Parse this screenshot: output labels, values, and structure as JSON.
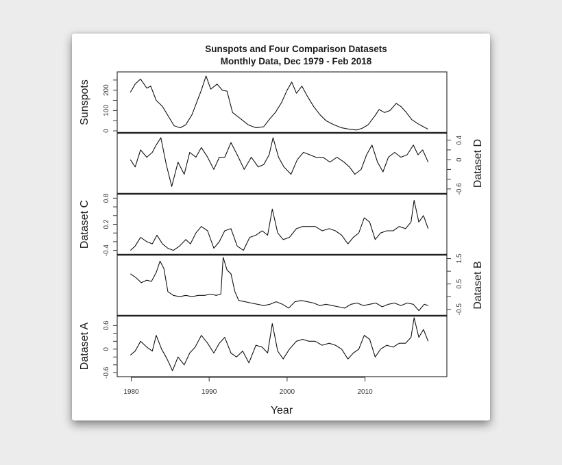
{
  "chart_data": {
    "type": "line",
    "title": "Sunspots and Four Comparison Datasets",
    "subtitle": "Monthly Data, Dec 1979 - Feb 2018",
    "xlabel": "Year",
    "x_ticks": [
      1980,
      1990,
      2000,
      2010
    ],
    "xlim": [
      1978.2,
      2020.5
    ],
    "layout": "stacked panels sharing x-axis; y-axis labels alternate left/right",
    "grid": false,
    "legend": null,
    "panels": [
      {
        "name": "Sunspots",
        "axis_side": "left",
        "yticks": [
          0,
          100,
          200
        ],
        "minor_ticks": [
          0,
          50,
          100,
          150,
          200,
          250
        ],
        "ylim": [
          -10,
          290
        ],
        "x": [
          1979.9,
          1980.5,
          1981.2,
          1982.0,
          1982.5,
          1983.2,
          1984.0,
          1984.8,
          1985.5,
          1986.3,
          1987.0,
          1987.8,
          1988.5,
          1989.0,
          1989.6,
          1990.2,
          1991.0,
          1991.7,
          1992.3,
          1993.0,
          1994.0,
          1995.0,
          1996.0,
          1997.0,
          1997.8,
          1998.5,
          1999.3,
          2000.0,
          2000.6,
          2001.2,
          2001.9,
          2002.6,
          2003.4,
          2004.2,
          2005.0,
          2006.0,
          2007.0,
          2008.0,
          2008.9,
          2009.6,
          2010.4,
          2011.2,
          2011.8,
          2012.5,
          2013.2,
          2014.0,
          2014.6,
          2015.3,
          2016.0,
          2016.8,
          2017.5,
          2018.1
        ],
        "values": [
          190,
          230,
          255,
          210,
          220,
          150,
          120,
          70,
          25,
          15,
          30,
          80,
          150,
          200,
          270,
          205,
          230,
          200,
          195,
          90,
          60,
          30,
          15,
          20,
          60,
          90,
          140,
          200,
          240,
          185,
          220,
          170,
          120,
          80,
          50,
          30,
          15,
          8,
          4,
          12,
          30,
          70,
          105,
          90,
          100,
          135,
          120,
          90,
          55,
          35,
          20,
          8
        ]
      },
      {
        "name": "Dataset D",
        "axis_side": "right",
        "yticks": [
          -0.6,
          0.0,
          0.4
        ],
        "minor_ticks": [
          -0.6,
          -0.4,
          -0.2,
          0.0,
          0.2,
          0.4
        ],
        "ylim": [
          -0.7,
          0.55
        ],
        "x": [
          1979.9,
          1980.5,
          1981.2,
          1982.0,
          1982.7,
          1983.2,
          1983.8,
          1984.5,
          1985.2,
          1986.0,
          1986.8,
          1987.5,
          1988.3,
          1989.0,
          1989.8,
          1990.6,
          1991.3,
          1992.0,
          1992.8,
          1993.6,
          1994.5,
          1995.4,
          1996.3,
          1997.0,
          1997.7,
          1998.2,
          1998.9,
          1999.6,
          2000.5,
          2001.3,
          2002.1,
          2002.9,
          2003.7,
          2004.6,
          2005.5,
          2006.4,
          2007.3,
          2008.0,
          2008.7,
          2009.5,
          2010.2,
          2010.9,
          2011.6,
          2012.3,
          2013.0,
          2013.8,
          2014.6,
          2015.4,
          2016.2,
          2016.8,
          2017.4,
          2018.1
        ],
        "values": [
          0.0,
          -0.15,
          0.2,
          0.05,
          0.15,
          0.3,
          0.45,
          -0.1,
          -0.55,
          -0.05,
          -0.3,
          0.15,
          0.05,
          0.25,
          0.05,
          -0.2,
          0.05,
          0.05,
          0.35,
          0.1,
          -0.2,
          0.05,
          -0.15,
          -0.1,
          0.1,
          0.45,
          0.05,
          -0.15,
          -0.3,
          0.0,
          0.15,
          0.1,
          0.05,
          0.05,
          -0.05,
          0.05,
          -0.05,
          -0.15,
          -0.3,
          -0.2,
          0.1,
          0.3,
          -0.05,
          -0.25,
          0.05,
          0.15,
          0.05,
          0.1,
          0.3,
          0.1,
          0.2,
          -0.05
        ]
      },
      {
        "name": "Dataset C",
        "axis_side": "left",
        "yticks": [
          -0.4,
          0.2,
          0.8
        ],
        "minor_ticks": [
          -0.4,
          -0.2,
          0.0,
          0.2,
          0.4,
          0.6,
          0.8
        ],
        "ylim": [
          -0.5,
          0.9
        ],
        "x": [
          1979.9,
          1980.5,
          1981.2,
          1982.0,
          1982.7,
          1983.3,
          1984.0,
          1984.7,
          1985.4,
          1986.2,
          1987.0,
          1987.6,
          1988.3,
          1989.0,
          1989.8,
          1990.6,
          1991.3,
          1992.0,
          1992.8,
          1993.6,
          1994.4,
          1995.2,
          1996.0,
          1996.8,
          1997.5,
          1998.1,
          1998.8,
          1999.5,
          2000.3,
          2001.2,
          2002.0,
          2002.8,
          2003.6,
          2004.5,
          2005.4,
          2006.2,
          2007.0,
          2007.8,
          2008.5,
          2009.2,
          2009.9,
          2010.6,
          2011.3,
          2012.0,
          2012.8,
          2013.6,
          2014.4,
          2015.2,
          2015.9,
          2016.3,
          2016.9,
          2017.5,
          2018.1
        ],
        "values": [
          -0.4,
          -0.3,
          -0.1,
          -0.2,
          -0.25,
          -0.05,
          -0.25,
          -0.35,
          -0.4,
          -0.3,
          -0.15,
          -0.25,
          0.0,
          0.15,
          0.05,
          -0.35,
          -0.2,
          0.05,
          0.1,
          -0.3,
          -0.4,
          -0.1,
          -0.05,
          0.05,
          -0.05,
          0.55,
          0.0,
          -0.15,
          -0.1,
          0.1,
          0.15,
          0.15,
          0.15,
          0.05,
          0.1,
          0.05,
          -0.05,
          -0.25,
          -0.1,
          0.0,
          0.35,
          0.25,
          -0.15,
          0.0,
          0.05,
          0.05,
          0.15,
          0.1,
          0.25,
          0.75,
          0.25,
          0.4,
          0.1
        ]
      },
      {
        "name": "Dataset B",
        "axis_side": "right",
        "yticks": [
          -0.5,
          0.5,
          1.5
        ],
        "minor_ticks": [
          -0.5,
          0.0,
          0.5,
          1.0,
          1.5
        ],
        "ylim": [
          -0.75,
          1.65
        ],
        "x": [
          1979.9,
          1980.6,
          1981.3,
          1982.0,
          1982.6,
          1983.2,
          1983.7,
          1984.2,
          1984.7,
          1985.4,
          1986.2,
          1987.0,
          1987.8,
          1988.6,
          1989.4,
          1990.2,
          1990.9,
          1991.5,
          1991.8,
          1992.3,
          1992.8,
          1993.3,
          1993.8,
          1994.6,
          1995.4,
          1996.2,
          1997.0,
          1997.8,
          1998.6,
          1999.4,
          2000.2,
          2001.0,
          2001.8,
          2002.6,
          2003.4,
          2004.2,
          2005.0,
          2005.8,
          2006.6,
          2007.4,
          2008.2,
          2009.0,
          2009.8,
          2010.6,
          2011.4,
          2012.2,
          2013.0,
          2013.8,
          2014.6,
          2015.4,
          2016.2,
          2016.9,
          2017.6,
          2018.1
        ],
        "values": [
          0.9,
          0.75,
          0.55,
          0.65,
          0.6,
          0.95,
          1.4,
          1.1,
          0.2,
          0.05,
          0.0,
          0.05,
          0.0,
          0.05,
          0.05,
          0.1,
          0.05,
          0.1,
          1.55,
          1.05,
          0.9,
          0.2,
          -0.15,
          -0.2,
          -0.25,
          -0.3,
          -0.35,
          -0.3,
          -0.2,
          -0.3,
          -0.45,
          -0.2,
          -0.15,
          -0.2,
          -0.25,
          -0.35,
          -0.3,
          -0.35,
          -0.4,
          -0.45,
          -0.3,
          -0.25,
          -0.35,
          -0.3,
          -0.25,
          -0.4,
          -0.3,
          -0.25,
          -0.35,
          -0.25,
          -0.3,
          -0.55,
          -0.3,
          -0.35
        ]
      },
      {
        "name": "Dataset A",
        "axis_side": "left",
        "yticks": [
          -0.6,
          0.0,
          0.6
        ],
        "minor_ticks": [
          -0.6,
          -0.4,
          -0.2,
          0.0,
          0.2,
          0.4,
          0.6
        ],
        "ylim": [
          -0.7,
          0.85
        ],
        "x": [
          1979.9,
          1980.5,
          1981.2,
          1982.0,
          1982.7,
          1983.2,
          1983.9,
          1984.6,
          1985.3,
          1986.0,
          1986.8,
          1987.5,
          1988.2,
          1989.0,
          1989.8,
          1990.6,
          1991.3,
          1992.0,
          1992.8,
          1993.5,
          1994.3,
          1995.1,
          1996.0,
          1996.8,
          1997.5,
          1998.1,
          1998.8,
          1999.5,
          2000.3,
          2001.2,
          2002.0,
          2002.8,
          2003.6,
          2004.5,
          2005.4,
          2006.2,
          2007.0,
          2007.8,
          2008.5,
          2009.2,
          2009.9,
          2010.6,
          2011.3,
          2012.0,
          2012.8,
          2013.6,
          2014.4,
          2015.2,
          2015.9,
          2016.3,
          2016.9,
          2017.5,
          2018.1
        ],
        "values": [
          -0.15,
          -0.05,
          0.2,
          0.05,
          -0.05,
          0.35,
          0.0,
          -0.25,
          -0.55,
          -0.2,
          -0.4,
          -0.1,
          0.05,
          0.35,
          0.15,
          -0.1,
          0.15,
          0.3,
          -0.1,
          -0.2,
          -0.05,
          -0.35,
          0.1,
          0.05,
          -0.1,
          0.65,
          -0.05,
          -0.25,
          0.0,
          0.2,
          0.25,
          0.2,
          0.2,
          0.1,
          0.15,
          0.1,
          0.0,
          -0.25,
          -0.1,
          0.0,
          0.35,
          0.25,
          -0.2,
          0.0,
          0.1,
          0.05,
          0.15,
          0.15,
          0.3,
          0.8,
          0.3,
          0.5,
          0.2
        ]
      }
    ]
  }
}
